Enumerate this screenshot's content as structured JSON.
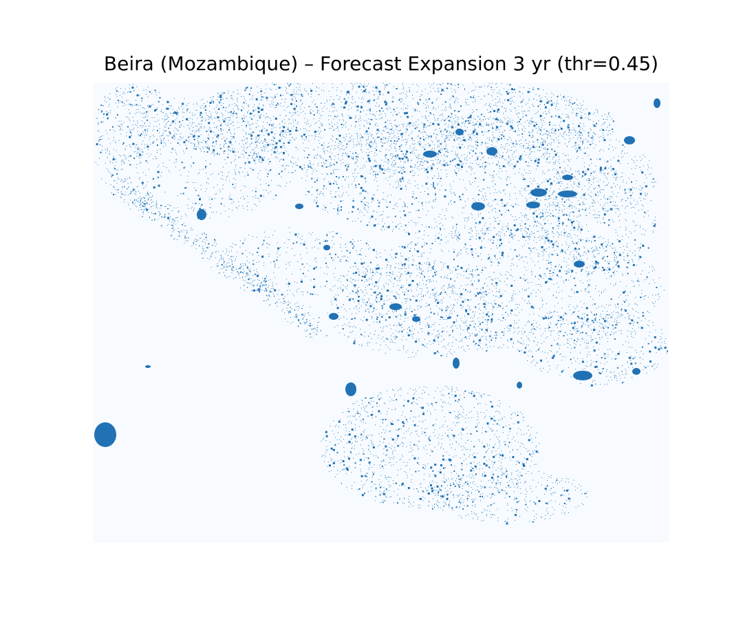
{
  "title": "Beira (Mozambique) – Forecast Expansion 3 yr (thr=0.45)",
  "colors": {
    "background": "#f7fbff",
    "expansion": "#2171b5"
  }
}
